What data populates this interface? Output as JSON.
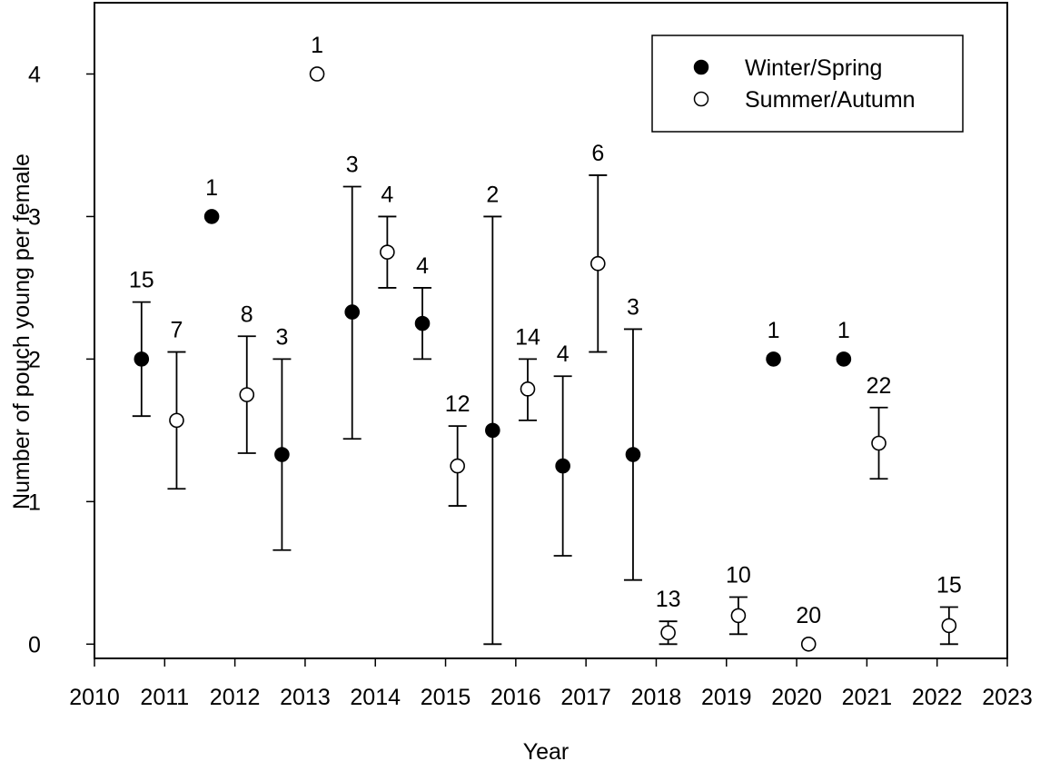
{
  "chart_data": {
    "type": "scatter",
    "xlabel": "Year",
    "ylabel": "Number of pouch young per female",
    "xlim": [
      2010,
      2023
    ],
    "ylim": [
      -0.1,
      4.5
    ],
    "xticks": [
      2010,
      2011,
      2012,
      2013,
      2014,
      2015,
      2016,
      2017,
      2018,
      2019,
      2020,
      2021,
      2022,
      2023
    ],
    "yticks": [
      0,
      1,
      2,
      3,
      4
    ],
    "grid": false,
    "legend_position": "top-right",
    "series": [
      {
        "name": "Winter/Spring",
        "marker": "filled-circle",
        "color": "#000000",
        "points": [
          {
            "x": 2010.67,
            "y": 2.0,
            "lo": 1.6,
            "hi": 2.4,
            "n": "15"
          },
          {
            "x": 2011.67,
            "y": 3.0,
            "lo": null,
            "hi": null,
            "n": "1"
          },
          {
            "x": 2012.67,
            "y": 1.33,
            "lo": 0.66,
            "hi": 2.0,
            "n": "3"
          },
          {
            "x": 2013.67,
            "y": 2.33,
            "lo": 1.44,
            "hi": 3.21,
            "n": "3"
          },
          {
            "x": 2014.67,
            "y": 2.25,
            "lo": 2.0,
            "hi": 2.5,
            "n": "4"
          },
          {
            "x": 2015.67,
            "y": 1.5,
            "lo": 0.0,
            "hi": 3.0,
            "n": "2"
          },
          {
            "x": 2016.67,
            "y": 1.25,
            "lo": 0.62,
            "hi": 1.88,
            "n": "4"
          },
          {
            "x": 2017.67,
            "y": 1.33,
            "lo": 0.45,
            "hi": 2.21,
            "n": "3"
          },
          {
            "x": 2019.67,
            "y": 2.0,
            "lo": null,
            "hi": null,
            "n": "1"
          },
          {
            "x": 2020.67,
            "y": 2.0,
            "lo": null,
            "hi": null,
            "n": "1"
          }
        ]
      },
      {
        "name": "Summer/Autumn",
        "marker": "open-circle",
        "color": "#000000",
        "points": [
          {
            "x": 2011.17,
            "y": 1.57,
            "lo": 1.09,
            "hi": 2.05,
            "n": "7"
          },
          {
            "x": 2012.17,
            "y": 1.75,
            "lo": 1.34,
            "hi": 2.16,
            "n": "8"
          },
          {
            "x": 2013.17,
            "y": 4.0,
            "lo": null,
            "hi": null,
            "n": "1"
          },
          {
            "x": 2014.17,
            "y": 2.75,
            "lo": 2.5,
            "hi": 3.0,
            "n": "4"
          },
          {
            "x": 2015.17,
            "y": 1.25,
            "lo": 0.97,
            "hi": 1.53,
            "n": "12"
          },
          {
            "x": 2016.17,
            "y": 1.79,
            "lo": 1.57,
            "hi": 2.0,
            "n": "14"
          },
          {
            "x": 2017.17,
            "y": 2.67,
            "lo": 2.05,
            "hi": 3.29,
            "n": "6"
          },
          {
            "x": 2018.17,
            "y": 0.08,
            "lo": 0.0,
            "hi": 0.16,
            "n": "13"
          },
          {
            "x": 2019.17,
            "y": 0.2,
            "lo": 0.07,
            "hi": 0.33,
            "n": "10"
          },
          {
            "x": 2020.17,
            "y": 0.0,
            "lo": null,
            "hi": null,
            "n": "20"
          },
          {
            "x": 2021.17,
            "y": 1.41,
            "lo": 1.16,
            "hi": 1.66,
            "n": "22"
          },
          {
            "x": 2022.17,
            "y": 0.13,
            "lo": 0.0,
            "hi": 0.26,
            "n": "15"
          }
        ]
      }
    ]
  }
}
